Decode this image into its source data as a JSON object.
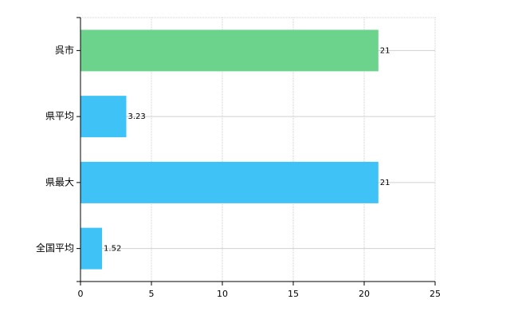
{
  "chart_data": {
    "type": "hbar",
    "categories": [
      "呉市",
      "県平均",
      "県最大",
      "全国平均"
    ],
    "values": [
      21,
      3.23,
      21,
      1.52
    ],
    "colors": [
      "#6cd38c",
      "#3fc3f6",
      "#3fc3f6",
      "#3fc3f6"
    ],
    "xlim": [
      0,
      25
    ],
    "xticks": [
      0,
      5,
      10,
      15,
      20,
      25
    ],
    "grid": true
  }
}
